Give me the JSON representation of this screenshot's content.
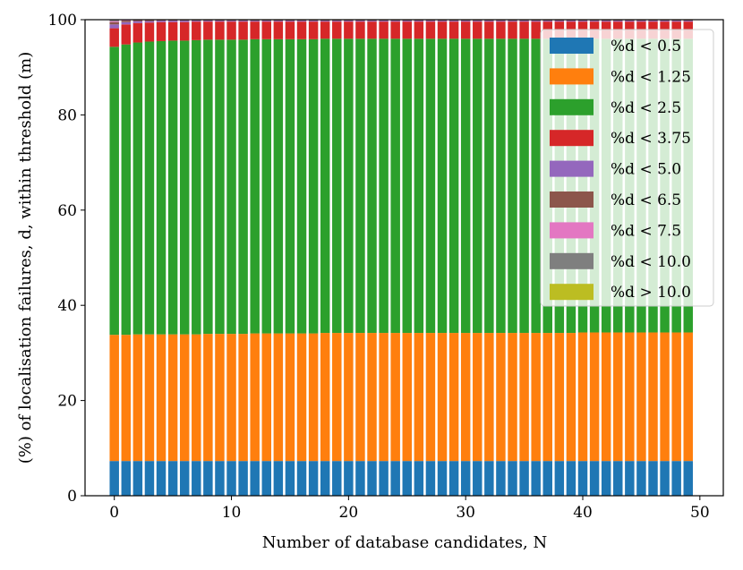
{
  "chart_data": {
    "type": "bar",
    "stacked": true,
    "xlabel": "Number of database candidates, N",
    "ylabel": "(%) of localisation failures, d, within threshold (m)",
    "xlim": [
      -2.5,
      52
    ],
    "ylim": [
      0,
      100
    ],
    "xticks": [
      0,
      10,
      20,
      30,
      40,
      50
    ],
    "yticks": [
      0,
      20,
      40,
      60,
      80,
      100
    ],
    "grid": false,
    "legend_position": "top-right",
    "x": [
      0,
      1,
      2,
      3,
      4,
      5,
      6,
      7,
      8,
      9,
      10,
      11,
      12,
      13,
      14,
      15,
      16,
      17,
      18,
      19,
      20,
      21,
      22,
      23,
      24,
      25,
      26,
      27,
      28,
      29,
      30,
      31,
      32,
      33,
      34,
      35,
      36,
      37,
      38,
      39,
      40,
      41,
      42,
      43,
      44,
      45,
      46,
      47,
      48,
      49
    ],
    "series": [
      {
        "name": "%d < 0.5",
        "color": "#1f77b4",
        "values": [
          7.3,
          7.3,
          7.3,
          7.3,
          7.3,
          7.3,
          7.3,
          7.3,
          7.3,
          7.3,
          7.3,
          7.3,
          7.3,
          7.3,
          7.3,
          7.3,
          7.3,
          7.3,
          7.3,
          7.3,
          7.3,
          7.3,
          7.3,
          7.3,
          7.3,
          7.3,
          7.3,
          7.3,
          7.3,
          7.3,
          7.3,
          7.3,
          7.3,
          7.3,
          7.3,
          7.3,
          7.3,
          7.3,
          7.3,
          7.3,
          7.3,
          7.3,
          7.3,
          7.3,
          7.3,
          7.3,
          7.3,
          7.3,
          7.3,
          7.3
        ]
      },
      {
        "name": "%d < 1.25",
        "color": "#ff7f0e",
        "values": [
          26.5,
          26.5,
          26.6,
          26.6,
          26.6,
          26.6,
          26.6,
          26.6,
          26.7,
          26.7,
          26.7,
          26.7,
          26.8,
          26.8,
          26.8,
          26.8,
          26.8,
          26.8,
          26.9,
          26.9,
          26.9,
          26.9,
          26.9,
          26.9,
          26.9,
          26.9,
          26.9,
          26.9,
          26.9,
          26.9,
          26.9,
          26.9,
          26.9,
          26.9,
          26.9,
          26.9,
          26.9,
          26.9,
          26.9,
          26.9,
          27.0,
          27.0,
          27.0,
          27.0,
          27.0,
          27.0,
          27.0,
          27.0,
          27.0,
          27.0
        ]
      },
      {
        "name": "%d < 2.5",
        "color": "#2ca02c",
        "values": [
          60.5,
          61.0,
          61.3,
          61.5,
          61.6,
          61.7,
          61.7,
          61.8,
          61.8,
          61.8,
          61.8,
          61.8,
          61.8,
          61.8,
          61.8,
          61.8,
          61.8,
          61.8,
          61.8,
          61.8,
          61.8,
          61.8,
          61.8,
          61.8,
          61.8,
          61.8,
          61.8,
          61.8,
          61.8,
          61.8,
          61.8,
          61.8,
          61.8,
          61.8,
          61.8,
          61.8,
          61.8,
          61.8,
          61.8,
          61.8,
          61.7,
          61.7,
          61.7,
          61.7,
          61.7,
          61.7,
          61.7,
          61.7,
          61.7,
          61.7
        ]
      },
      {
        "name": "%d < 3.75",
        "color": "#d62728",
        "values": [
          3.9,
          4.2,
          4.1,
          4.0,
          4.0,
          3.9,
          3.9,
          3.9,
          3.8,
          3.8,
          3.8,
          3.8,
          3.7,
          3.7,
          3.7,
          3.7,
          3.7,
          3.7,
          3.6,
          3.6,
          3.6,
          3.6,
          3.6,
          3.6,
          3.6,
          3.6,
          3.6,
          3.6,
          3.6,
          3.6,
          3.6,
          3.6,
          3.6,
          3.6,
          3.6,
          3.6,
          3.6,
          3.6,
          3.6,
          3.6,
          3.6,
          3.6,
          3.6,
          3.6,
          3.6,
          3.6,
          3.6,
          3.6,
          3.6,
          3.6
        ]
      },
      {
        "name": "%d < 5.0",
        "color": "#9467bd",
        "values": [
          0.8,
          0.5,
          0.4,
          0.3,
          0.3,
          0.3,
          0.3,
          0.2,
          0.2,
          0.2,
          0.2,
          0.2,
          0.2,
          0.2,
          0.2,
          0.2,
          0.2,
          0.2,
          0.2,
          0.2,
          0.2,
          0.2,
          0.2,
          0.2,
          0.2,
          0.2,
          0.2,
          0.2,
          0.2,
          0.2,
          0.2,
          0.2,
          0.2,
          0.2,
          0.2,
          0.2,
          0.2,
          0.2,
          0.2,
          0.2,
          0.2,
          0.2,
          0.2,
          0.2,
          0.2,
          0.2,
          0.2,
          0.2,
          0.2,
          0.2
        ]
      },
      {
        "name": "%d < 6.5",
        "color": "#8c564b",
        "values": [
          0.5,
          0.3,
          0.2,
          0.2,
          0.1,
          0.1,
          0.1,
          0.1,
          0.1,
          0.1,
          0.1,
          0.1,
          0.1,
          0.1,
          0.1,
          0.1,
          0.1,
          0.1,
          0.1,
          0.1,
          0.1,
          0.1,
          0.1,
          0.1,
          0.1,
          0.1,
          0.1,
          0.1,
          0.1,
          0.1,
          0.1,
          0.1,
          0.1,
          0.1,
          0.1,
          0.1,
          0.1,
          0.1,
          0.1,
          0.1,
          0.1,
          0.1,
          0.1,
          0.1,
          0.1,
          0.1,
          0.1,
          0.1,
          0.1,
          0.1
        ]
      },
      {
        "name": "%d < 7.5",
        "color": "#e377c2",
        "values": [
          0.2,
          0.1,
          0.05,
          0.05,
          0.05,
          0.05,
          0,
          0,
          0,
          0,
          0,
          0,
          0,
          0,
          0,
          0,
          0,
          0,
          0,
          0,
          0,
          0,
          0,
          0,
          0,
          0,
          0,
          0,
          0,
          0,
          0,
          0,
          0,
          0,
          0,
          0,
          0,
          0,
          0,
          0,
          0,
          0,
          0,
          0,
          0,
          0,
          0,
          0,
          0,
          0
        ]
      },
      {
        "name": "%d < 10.0",
        "color": "#7f7f7f",
        "values": [
          0.2,
          0.1,
          0.05,
          0.05,
          0.05,
          0.05,
          0,
          0,
          0,
          0,
          0,
          0,
          0,
          0,
          0,
          0,
          0,
          0,
          0,
          0,
          0,
          0,
          0,
          0,
          0,
          0,
          0,
          0,
          0,
          0,
          0,
          0,
          0,
          0,
          0,
          0,
          0,
          0,
          0,
          0,
          0,
          0,
          0,
          0,
          0,
          0,
          0,
          0,
          0,
          0
        ]
      },
      {
        "name": "%d > 10.0",
        "color": "#bcbd22",
        "values": [
          0.1,
          0,
          0,
          0,
          0,
          0,
          0,
          0,
          0,
          0,
          0,
          0,
          0,
          0,
          0,
          0,
          0,
          0,
          0,
          0,
          0,
          0,
          0,
          0,
          0,
          0,
          0,
          0,
          0,
          0,
          0,
          0,
          0,
          0,
          0,
          0,
          0,
          0,
          0,
          0,
          0,
          0,
          0,
          0,
          0,
          0,
          0,
          0,
          0,
          0
        ]
      }
    ]
  }
}
